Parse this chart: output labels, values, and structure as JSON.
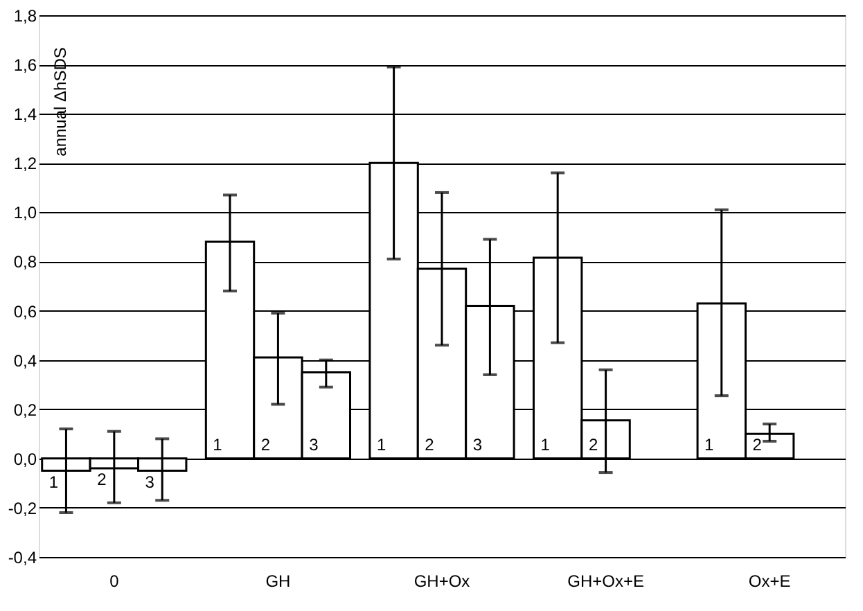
{
  "chart_data": {
    "type": "bar",
    "ylabel": "annual ΔhSDS",
    "categories": [
      "0",
      "GH",
      "GH+Ox",
      "GH+Ox+E",
      "Ox+E"
    ],
    "series": [
      {
        "name": "1",
        "color": "#ffffff",
        "values": [
          -0.05,
          0.88,
          1.2,
          0.815,
          0.63
        ],
        "errors": [
          [
            -0.22,
            0.12
          ],
          [
            0.68,
            1.07
          ],
          [
            0.81,
            1.59
          ],
          [
            0.47,
            1.16
          ],
          [
            0.255,
            1.01
          ]
        ]
      },
      {
        "name": "2",
        "color": "#ffffff",
        "values": [
          -0.04,
          0.41,
          0.77,
          0.155,
          0.1
        ],
        "errors": [
          [
            -0.18,
            0.11
          ],
          [
            0.22,
            0.59
          ],
          [
            0.46,
            1.08
          ],
          [
            -0.057,
            0.36
          ],
          [
            0.07,
            0.14
          ]
        ]
      },
      {
        "name": "3",
        "color": "#ffffff",
        "values": [
          -0.05,
          0.35,
          0.62,
          null,
          null
        ],
        "errors": [
          [
            -0.17,
            0.08
          ],
          [
            0.29,
            0.4
          ],
          [
            0.34,
            0.89
          ],
          null,
          null
        ]
      }
    ],
    "ylim": [
      -0.4,
      1.8
    ],
    "yticks": [
      {
        "value": -0.4,
        "label": "-0,4"
      },
      {
        "value": -0.2,
        "label": "-0,2"
      },
      {
        "value": 0,
        "label": "0,0"
      },
      {
        "value": 0.2,
        "label": "0,2"
      },
      {
        "value": 0.4,
        "label": "0,4"
      },
      {
        "value": 0.6,
        "label": "0,6"
      },
      {
        "value": 0.8,
        "label": "0,8"
      },
      {
        "value": 1.0,
        "label": "1,0"
      },
      {
        "value": 1.2,
        "label": "1,2"
      },
      {
        "value": 1.4,
        "label": "1,4"
      },
      {
        "value": 1.6,
        "label": "1,6"
      },
      {
        "value": 1.8,
        "label": "1,8"
      }
    ],
    "grid": "y",
    "legend": false
  }
}
